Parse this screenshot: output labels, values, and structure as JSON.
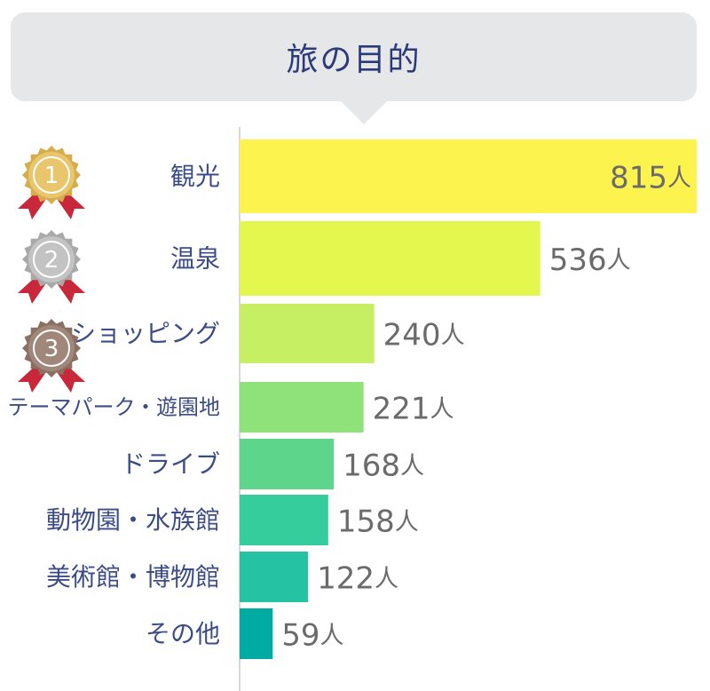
{
  "title": "旅の目的",
  "chart_data": {
    "type": "bar",
    "orientation": "horizontal",
    "title": "旅の目的",
    "categories": [
      "観光",
      "温泉",
      "ショッピング",
      "テーマパーク・遊園地",
      "ドライブ",
      "動物園・水族館",
      "美術館・博物館",
      "その他"
    ],
    "values": [
      815,
      536,
      240,
      221,
      168,
      158,
      122,
      59
    ],
    "unit": "人",
    "value_labels": [
      "815",
      "536",
      "240",
      "221",
      "168",
      "158",
      "122",
      "59"
    ],
    "colors": [
      "#fdf34f",
      "#e3f74f",
      "#c6ef63",
      "#8fe27a",
      "#5dd68c",
      "#35cd9b",
      "#25c2a3",
      "#00aba3"
    ],
    "xlim": [
      0,
      815
    ],
    "grid": false,
    "legend": "none"
  },
  "medals": [
    {
      "rank": "1",
      "color": "#e9c66b",
      "ray_color": "#d6ad4e"
    },
    {
      "rank": "2",
      "color": "#c3c3c3",
      "ray_color": "#a9a9a9"
    },
    {
      "rank": "3",
      "color": "#a0877a",
      "ray_color": "#8a7062"
    }
  ],
  "medal_ribbon_color": "#c9283b",
  "axis_color": "#cccccc",
  "category_text_color": "#3c4c86",
  "value_text_color": "#6b6b6b"
}
